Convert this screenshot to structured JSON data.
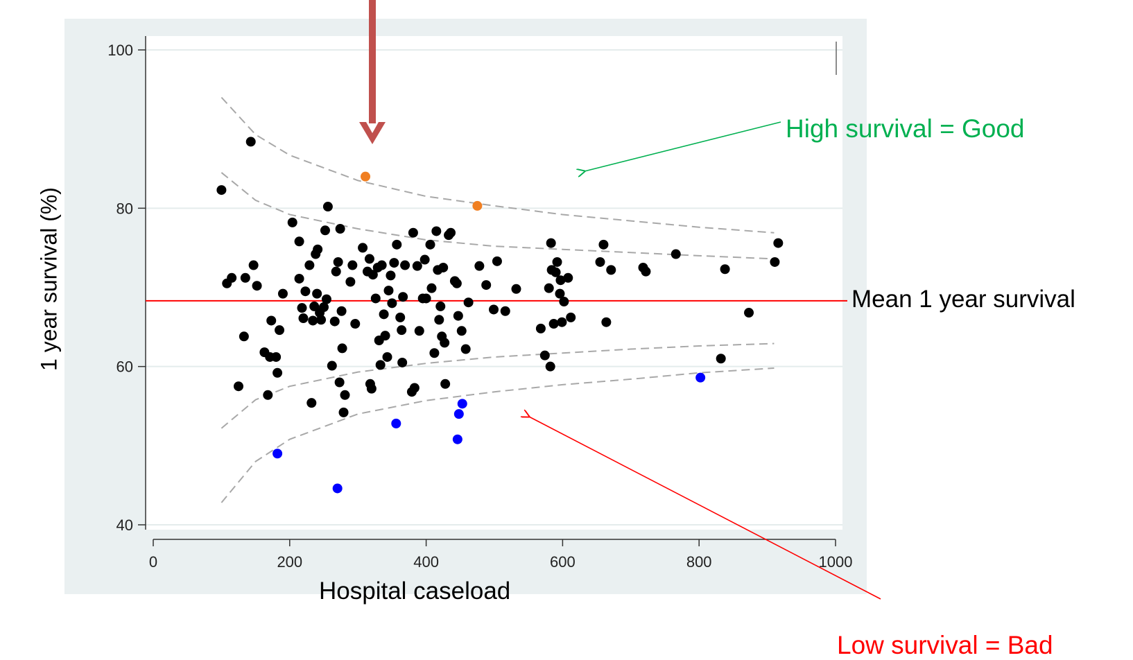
{
  "chart_data": {
    "type": "scatter",
    "title": "",
    "xlabel": "Hospital caseload",
    "ylabel": "1 year survival (%)",
    "xlim": [
      0,
      1000
    ],
    "ylim": [
      40,
      100
    ],
    "xticks": [
      "0",
      "200",
      "400",
      "600",
      "800",
      "1000"
    ],
    "yticks": [
      "40",
      "60",
      "80",
      "100"
    ],
    "grid": "horizontal",
    "mean_line": {
      "y": 68.3,
      "color": "#ff0000"
    },
    "limits": [
      {
        "name": "upper_outer",
        "points": [
          [
            100,
            94
          ],
          [
            150,
            89.3
          ],
          [
            200,
            86.7
          ],
          [
            300,
            83.5
          ],
          [
            400,
            81.5
          ],
          [
            500,
            80.3
          ],
          [
            600,
            79.2
          ],
          [
            700,
            78.4
          ],
          [
            800,
            77.6
          ],
          [
            910,
            76.9
          ]
        ]
      },
      {
        "name": "upper_inner",
        "points": [
          [
            100,
            84.5
          ],
          [
            150,
            81
          ],
          [
            200,
            79.2
          ],
          [
            300,
            77.4
          ],
          [
            400,
            76
          ],
          [
            500,
            75.2
          ],
          [
            600,
            74.8
          ],
          [
            700,
            74.4
          ],
          [
            800,
            74
          ],
          [
            910,
            73.6
          ]
        ]
      },
      {
        "name": "lower_inner",
        "points": [
          [
            100,
            52.2
          ],
          [
            150,
            55.8
          ],
          [
            200,
            57.5
          ],
          [
            300,
            59.3
          ],
          [
            400,
            60.4
          ],
          [
            500,
            61.2
          ],
          [
            600,
            61.7
          ],
          [
            700,
            62.2
          ],
          [
            800,
            62.6
          ],
          [
            910,
            62.9
          ]
        ]
      },
      {
        "name": "lower_outer",
        "points": [
          [
            100,
            42.8
          ],
          [
            150,
            48
          ],
          [
            200,
            50.8
          ],
          [
            300,
            54
          ],
          [
            400,
            55.7
          ],
          [
            500,
            56.8
          ],
          [
            600,
            57.7
          ],
          [
            700,
            58.4
          ],
          [
            800,
            59.2
          ],
          [
            910,
            59.8
          ]
        ]
      }
    ],
    "series": [
      {
        "color": "#000000",
        "points": [
          [
            100,
            82.3
          ],
          [
            108,
            70.5
          ],
          [
            115,
            71.2
          ],
          [
            125,
            57.5
          ],
          [
            133,
            63.8
          ],
          [
            135,
            71.2
          ],
          [
            143,
            88.4
          ],
          [
            147,
            72.8
          ],
          [
            152,
            70.2
          ],
          [
            163,
            61.8
          ],
          [
            168,
            56.4
          ],
          [
            171,
            61.2
          ],
          [
            173,
            65.8
          ],
          [
            180,
            61.2
          ],
          [
            182,
            59.2
          ],
          [
            185,
            64.6
          ],
          [
            190,
            69.2
          ],
          [
            204,
            78.2
          ],
          [
            214,
            75.8
          ],
          [
            214,
            71.1
          ],
          [
            218,
            67.4
          ],
          [
            220,
            66.1
          ],
          [
            223,
            69.5
          ],
          [
            229,
            72.8
          ],
          [
            232,
            55.4
          ],
          [
            234,
            65.8
          ],
          [
            236,
            67.6
          ],
          [
            238,
            74.2
          ],
          [
            240,
            69.2
          ],
          [
            241,
            74.8
          ],
          [
            244,
            66.8
          ],
          [
            246,
            65.9
          ],
          [
            250,
            67.5
          ],
          [
            252,
            77.2
          ],
          [
            254,
            68.5
          ],
          [
            256,
            80.2
          ],
          [
            262,
            60.1
          ],
          [
            266,
            65.7
          ],
          [
            268,
            72.0
          ],
          [
            271,
            73.2
          ],
          [
            273,
            58.0
          ],
          [
            274,
            77.4
          ],
          [
            276,
            67.0
          ],
          [
            277,
            62.3
          ],
          [
            279,
            54.2
          ],
          [
            281,
            56.4
          ],
          [
            289,
            70.7
          ],
          [
            292,
            72.8
          ],
          [
            296,
            65.4
          ],
          [
            307,
            75.0
          ],
          [
            314,
            72.0
          ],
          [
            317,
            73.6
          ],
          [
            318,
            57.8
          ],
          [
            320,
            57.2
          ],
          [
            322,
            71.6
          ],
          [
            326,
            68.6
          ],
          [
            329,
            72.5
          ],
          [
            331,
            63.3
          ],
          [
            333,
            60.2
          ],
          [
            335,
            72.8
          ],
          [
            338,
            66.6
          ],
          [
            340,
            63.9
          ],
          [
            343,
            61.2
          ],
          [
            345,
            69.6
          ],
          [
            348,
            71.5
          ],
          [
            350,
            68.0
          ],
          [
            353,
            73.1
          ],
          [
            357,
            75.4
          ],
          [
            362,
            66.2
          ],
          [
            364,
            64.6
          ],
          [
            365,
            60.5
          ],
          [
            366,
            68.8
          ],
          [
            369,
            72.8
          ],
          [
            379,
            56.8
          ],
          [
            381,
            76.9
          ],
          [
            383,
            57.3
          ],
          [
            387,
            72.7
          ],
          [
            390,
            64.5
          ],
          [
            395,
            68.6
          ],
          [
            398,
            73.5
          ],
          [
            400,
            68.6
          ],
          [
            406,
            75.4
          ],
          [
            408,
            69.9
          ],
          [
            412,
            61.7
          ],
          [
            415,
            77.1
          ],
          [
            417,
            72.2
          ],
          [
            419,
            65.9
          ],
          [
            421,
            67.6
          ],
          [
            423,
            63.8
          ],
          [
            425,
            72.5
          ],
          [
            427,
            63.0
          ],
          [
            428,
            57.8
          ],
          [
            433,
            76.6
          ],
          [
            436,
            76.9
          ],
          [
            442,
            70.8
          ],
          [
            445,
            70.5
          ],
          [
            447,
            66.4
          ],
          [
            452,
            64.5
          ],
          [
            458,
            62.2
          ],
          [
            462,
            68.1
          ],
          [
            478,
            72.7
          ],
          [
            488,
            70.3
          ],
          [
            499,
            67.2
          ],
          [
            504,
            73.3
          ],
          [
            516,
            67.0
          ],
          [
            532,
            69.8
          ],
          [
            568,
            64.8
          ],
          [
            574,
            61.4
          ],
          [
            580,
            69.9
          ],
          [
            582,
            60.0
          ],
          [
            584,
            72.2
          ],
          [
            587,
            65.4
          ],
          [
            590,
            71.9
          ],
          [
            592,
            73.2
          ],
          [
            596,
            69.2
          ],
          [
            597,
            70.9
          ],
          [
            599,
            65.6
          ],
          [
            602,
            68.2
          ],
          [
            608,
            71.2
          ],
          [
            612,
            66.2
          ],
          [
            655,
            73.2
          ],
          [
            660,
            75.4
          ],
          [
            664,
            65.6
          ],
          [
            671,
            72.2
          ],
          [
            718,
            72.5
          ],
          [
            722,
            72.0
          ],
          [
            766,
            74.2
          ],
          [
            832,
            61.0
          ],
          [
            838,
            72.3
          ],
          [
            873,
            66.8
          ],
          [
            911,
            73.2
          ],
          [
            916,
            75.6
          ],
          [
            583,
            75.6
          ]
        ]
      },
      {
        "color": "#f07f21",
        "points": [
          [
            311,
            84.0
          ],
          [
            475,
            80.3
          ]
        ]
      },
      {
        "color": "#0000ff",
        "points": [
          [
            182,
            49.0
          ],
          [
            270,
            44.6
          ],
          [
            356,
            52.8
          ],
          [
            446,
            50.8
          ],
          [
            448,
            54.0
          ],
          [
            453,
            55.3
          ],
          [
            802,
            58.6
          ]
        ]
      }
    ],
    "annotations": {
      "good": {
        "text": "High survival = Good",
        "color": "#00b050"
      },
      "mean": {
        "text": "Mean 1 year survival",
        "color": "#000000"
      },
      "bad": {
        "text": "Low survival = Bad",
        "color": "#ff0000"
      }
    },
    "pointer_arrow_color": "#c0504d"
  }
}
